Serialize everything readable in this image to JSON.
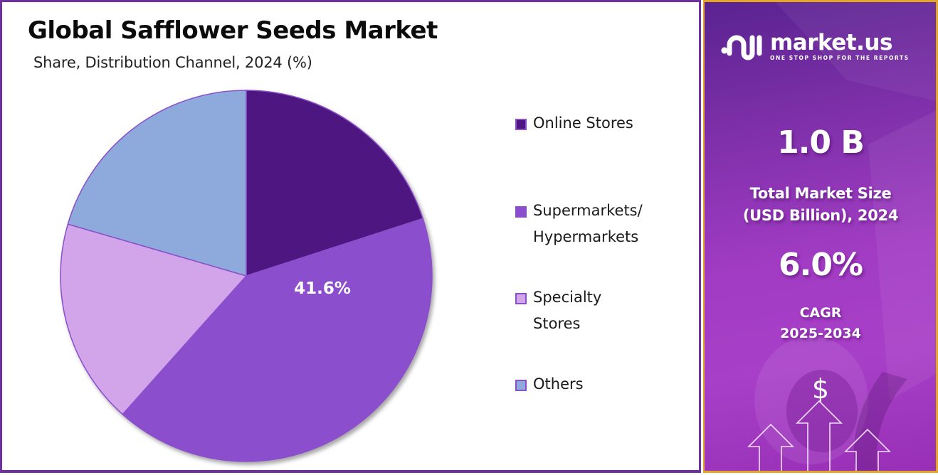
{
  "header": {
    "title": "Global Safflower Seeds Market",
    "subtitle": "Share, Distribution Channel, 2024 (%)"
  },
  "chart_data": {
    "type": "pie",
    "title": "Global Safflower Seeds Market",
    "subtitle": "Share, Distribution Channel, 2024 (%)",
    "categories": [
      "Online Stores",
      "Supermarkets/ Hypermarkets",
      "Specialty Stores",
      "Others"
    ],
    "values": [
      20.0,
      41.6,
      17.9,
      20.5
    ],
    "colors": [
      "#4e1681",
      "#8b4fce",
      "#d2a4ea",
      "#8eaadc"
    ],
    "data_labels": [
      {
        "category": "Supermarkets/ Hypermarkets",
        "text": "41.6%"
      }
    ],
    "start_angle_deg": 0,
    "direction": "clockwise",
    "legend_position": "right"
  },
  "legend": {
    "items": [
      {
        "label": "Online Stores",
        "color": "#4e1681"
      },
      {
        "label": "Supermarkets/\nHypermarkets",
        "color": "#8b4fce"
      },
      {
        "label": "Specialty\nStores",
        "color": "#d2a4ea"
      },
      {
        "label": "Others",
        "color": "#8eaadc"
      }
    ]
  },
  "pie_label": "41.6%",
  "sidebar": {
    "brand_name": "market.us",
    "brand_tagline": "ONE STOP SHOP FOR THE REPORTS",
    "market_size_value": "1.0 B",
    "market_size_label": "Total Market Size\n(USD Billion), 2024",
    "cagr_value": "6.0%",
    "cagr_label": "CAGR\n2025-2034",
    "dollar_symbol": "$"
  },
  "colors": {
    "card_border": "#7030a0",
    "panel_border": "#e5a628",
    "panel_bg": "#a23cc4"
  }
}
